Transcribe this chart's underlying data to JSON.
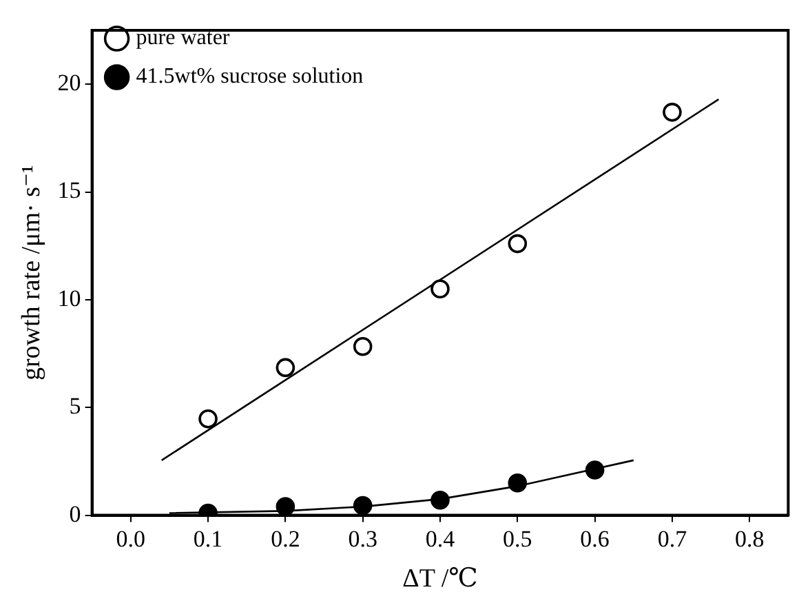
{
  "chart_data": {
    "type": "scatter",
    "xlabel": "ΔT /℃",
    "ylabel": "growth rate /μm· s⁻¹",
    "xlim": [
      -0.05,
      0.85
    ],
    "ylim": [
      0,
      22.5
    ],
    "xticks": [
      {
        "value": 0,
        "label": "0.0"
      },
      {
        "value": 0.1,
        "label": "0.1"
      },
      {
        "value": 0.2,
        "label": "0.2"
      },
      {
        "value": 0.3,
        "label": "0.3"
      },
      {
        "value": 0.4,
        "label": "0.4"
      },
      {
        "value": 0.5,
        "label": "0.5"
      },
      {
        "value": 0.6,
        "label": "0.6"
      },
      {
        "value": 0.7,
        "label": "0.7"
      },
      {
        "value": 0.8,
        "label": "0.8"
      }
    ],
    "yticks": [
      0,
      5,
      10,
      15,
      20
    ],
    "grid": false,
    "legend": "top left",
    "series": [
      {
        "name": "pure water",
        "color": "#ffffff",
        "marker": "circle",
        "x": [
          0.1,
          0.2,
          0.3,
          0.4,
          0.5,
          0.7
        ],
        "values": [
          4.47,
          6.85,
          7.83,
          10.5,
          12.6,
          18.7
        ]
      },
      {
        "name": "41.5wt% sucrose solution",
        "color": "#000000",
        "marker": "circle",
        "x": [
          0.1,
          0.2,
          0.3,
          0.4,
          0.5,
          0.6
        ],
        "values": [
          0.1,
          0.4,
          0.45,
          0.7,
          1.5,
          2.1
        ]
      },
      {
        "type": "line",
        "color": "#000000",
        "marker": "none",
        "x": [
          0.04,
          0.76
        ],
        "values": [
          2.55,
          19.3
        ]
      },
      {
        "type": "line",
        "color": "#000000",
        "marker": "none",
        "x": [
          0.05,
          0.2,
          0.3,
          0.4,
          0.5,
          0.65
        ],
        "values": [
          0.1,
          0.2,
          0.4,
          0.75,
          1.35,
          2.55
        ]
      }
    ]
  }
}
